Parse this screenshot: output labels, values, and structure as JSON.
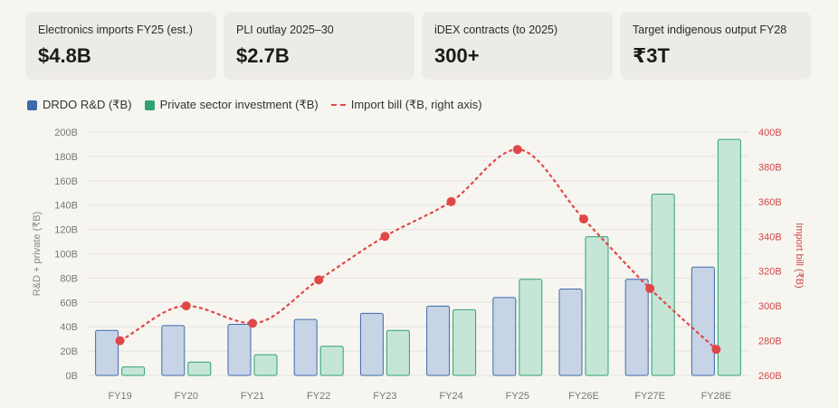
{
  "cards": [
    {
      "label": "Electronics imports FY25 (est.)",
      "value": "$4.8B"
    },
    {
      "label": "PLI outlay 2025–30",
      "value": "$2.7B"
    },
    {
      "label": "iDEX contracts (to 2025)",
      "value": "300+"
    },
    {
      "label": "Target indigenous output FY28",
      "value": "₹3T"
    }
  ],
  "legend": {
    "rd": "DRDO R&D (₹B)",
    "private": "Private sector investment (₹B)",
    "imports": "Import bill (₹B, right axis)"
  },
  "colors": {
    "rd_fill": "#c7d4e6",
    "rd_stroke": "#3e6aab",
    "private_fill": "#c5e6d6",
    "private_stroke": "#2fa36f",
    "line": "#e04848"
  },
  "chart_data": {
    "type": "bar",
    "categories": [
      "FY19",
      "FY20",
      "FY21",
      "FY22",
      "FY23",
      "FY24",
      "FY25",
      "FY26E",
      "FY27E",
      "FY28E"
    ],
    "series": [
      {
        "name": "DRDO R&D (₹B)",
        "type": "bar",
        "axis": "left",
        "values": [
          37,
          41,
          42,
          46,
          51,
          57,
          64,
          71,
          79,
          89
        ]
      },
      {
        "name": "Private sector investment (₹B)",
        "type": "bar",
        "axis": "left",
        "values": [
          7,
          11,
          17,
          24,
          37,
          54,
          79,
          114,
          149,
          194
        ]
      },
      {
        "name": "Import bill (₹B, right axis)",
        "type": "line",
        "axis": "right",
        "values": [
          280,
          300,
          290,
          315,
          340,
          360,
          390,
          350,
          310,
          275
        ]
      }
    ],
    "ylabel": "R&D + private (₹B)",
    "y2label": "Import bill (₹B)",
    "ylim": [
      0,
      200
    ],
    "y2lim": [
      260,
      400
    ],
    "yticks": [
      "0B",
      "20B",
      "40B",
      "60B",
      "80B",
      "100B",
      "120B",
      "140B",
      "160B",
      "180B",
      "200B"
    ],
    "y2ticks": [
      "260B",
      "280B",
      "300B",
      "320B",
      "340B",
      "360B",
      "380B",
      "400B"
    ],
    "grid": true,
    "legend_position": "top-left"
  }
}
